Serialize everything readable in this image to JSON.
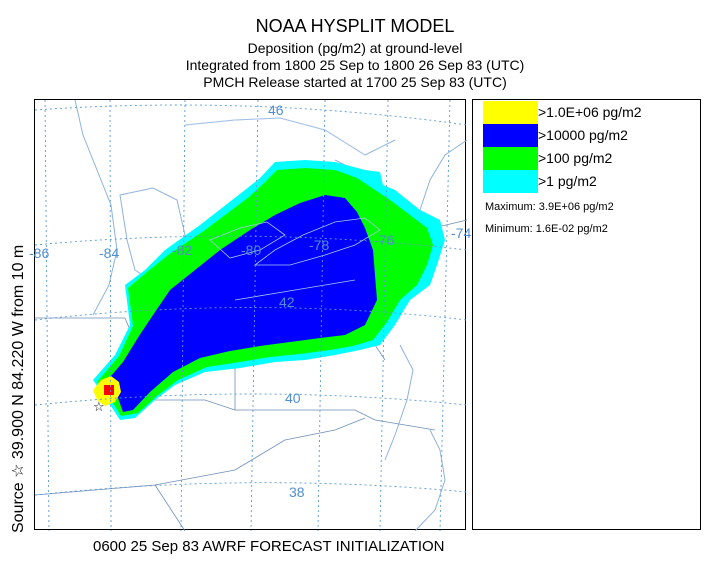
{
  "header": {
    "title": "NOAA HYSPLIT MODEL",
    "line2": "Deposition  (pg/m2) at ground-level",
    "line3": "Integrated from 1800 25 Sep to 1800 26 Sep 83 (UTC)",
    "line4": "PMCH Release started at 1700 25 Sep 83 (UTC)"
  },
  "source_label": "Source ☆ 39.900  N  84.220  W    from  10 m",
  "footer": "0600 25 Sep 83 AWRF FORECAST INITIALIZATION",
  "map": {
    "lon_labels": [
      "-86",
      "-84",
      "-82",
      "-80",
      "-78",
      "-76",
      "-74"
    ],
    "lat_labels": [
      "46",
      "42",
      "40",
      "38"
    ],
    "source_marker": "☆"
  },
  "legend": {
    "items": [
      {
        "label": ">1.0E+06 pg/m2",
        "color": "#ffff00"
      },
      {
        "label": ">10000 pg/m2",
        "color": "#0000ff"
      },
      {
        "label": ">100 pg/m2",
        "color": "#00ff00"
      },
      {
        "label": ">1 pg/m2",
        "color": "#00ffff"
      }
    ],
    "maximum": "Maximum:  3.9E+06 pg/m2",
    "minimum": "Minimum:  1.6E-02 pg/m2"
  },
  "colors": {
    "grid": "#5b9bd5",
    "coast": "#c0d6ee",
    "max_cell": "#ff0000"
  }
}
